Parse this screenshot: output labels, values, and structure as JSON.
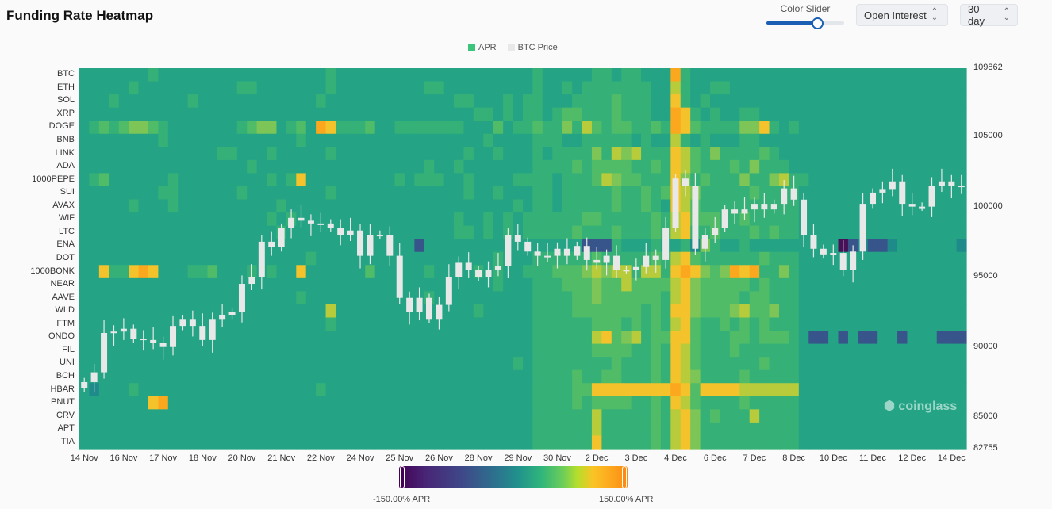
{
  "header": {
    "title": "Funding Rate Heatmap",
    "color_slider_label": "Color Slider",
    "color_slider_value": 0.65,
    "metric_select": "Open Interest",
    "period_select": "30 day"
  },
  "watermark": "coinglass",
  "colorbar": {
    "min_label": "-150.00% APR",
    "max_label": "150.00% APR"
  },
  "chart_data": {
    "type": "heatmap",
    "title": "Funding Rate Heatmap",
    "legend": [
      {
        "name": "APR",
        "color": "#3cc57a"
      },
      {
        "name": "BTC Price",
        "color": "#e8e8e8"
      }
    ],
    "legend_placement": "top-center",
    "rows": [
      "BTC",
      "ETH",
      "SOL",
      "XRP",
      "DOGE",
      "BNB",
      "LINK",
      "ADA",
      "1000PEPE",
      "SUI",
      "AVAX",
      "WIF",
      "LTC",
      "ENA",
      "DOT",
      "1000BONK",
      "NEAR",
      "AAVE",
      "WLD",
      "FTM",
      "ONDO",
      "FIL",
      "UNI",
      "BCH",
      "HBAR",
      "PNUT",
      "CRV",
      "APT",
      "TIA"
    ],
    "x_ticks": [
      "14 Nov",
      "16 Nov",
      "17 Nov",
      "18 Nov",
      "20 Nov",
      "21 Nov",
      "22 Nov",
      "24 Nov",
      "25 Nov",
      "26 Nov",
      "28 Nov",
      "29 Nov",
      "30 Nov",
      "2 Dec",
      "3 Dec",
      "4 Dec",
      "6 Dec",
      "7 Dec",
      "8 Dec",
      "10 Dec",
      "11 Dec",
      "12 Dec",
      "14 Dec"
    ],
    "color_range_apr": [
      -150,
      150
    ],
    "level_apr": [
      -150,
      -80,
      -30,
      0,
      10,
      20,
      35,
      55,
      80,
      110
    ],
    "level_colors": [
      "#461157",
      "#37548b",
      "#1f8a8a",
      "#24a485",
      "#35b178",
      "#50bc68",
      "#7cc556",
      "#b8cc3b",
      "#f4c22a",
      "#fba81f"
    ],
    "cells": [
      "333333343333333333333333343333333333333333333343333344344333943333333333333333333333333333",
      "333334333333333344333333343333333334433333333343343444444433743344333333333333333333333333",
      "333433333334333333333333433333333333334433343443334444544433843433333333333333333333333333",
      "333333333333333333333333333333333333333344343443455444544433984343344333333333333333333333",
      "345456654333333345663453984445334444444333534454464754554454985444466843433333333333333333",
      "333333334333333333333343333333333333333334333344433444443433743433344333333333333333333333",
      "333333333333334433343333343333333333333433433343444464767444875464444543333333333333333333",
      "333333333333333334333333333333333334334333333344445455554454875444546444333333333333333333",
      "345333333433333333343483333333334344433433334444344457655444864544464467443333333333333333",
      "333333334433333343333333343333333333333433433344344444544545876444445444433333333333333333",
      "333334333433333333334333333333333333333333334344344444544543875444444444433333333333333333",
      "333333333333333333343433333333333333334334343444444554444454785554454444433333333333333333",
      "333333333333333333334333333333333333334434343444445444544454784454445454433333333333333333",
      "333333333333333333333333333333333313333333333333333111433343342643343333333330121123333332333",
      "333333333333333333333334333333333333333333433344444454444454785444444544433333333333333333",
      "338448983334453334343383333335333334333343433444555676774774898656989446433333333333333333",
      "333333333333333333333333333333333333333333433344455565575555786555554544433333333333333333",
      "333333333333333333333343333333333334333333333344445565555554786555545544433333333333333333",
      "333333333333333333333333373333333333333343333344445555555454886555675564433333333333333333",
      "333333333333333333333333343333333333333333333344444455545454785445454544433333333333333333",
      "333333333333333333333333333333333333333333333344444478567455885444554555431131311331333111",
      "333333333333333333333333333333333333333333333344444455554454875444544444433333333333333333",
      "333333333333333333333333333333333333333333334344444444544454875444444544433333333333333333",
      "333333333333333333333333333333333333333333333344445445544454876444454444433333333333333333",
      "323334333333333333333333433333333333333333333344445588888888985888877777733333333333333333",
      "333333389333333333333333333333333333333333333344445455554454875444454444433333333333333333",
      "333333333333333333333333333333333333333333333344444474444454786454447444433333333333333333",
      "333333333333333333333333333333333333333333333344444474444454786444444444433333333333333333",
      "333333333333333333333333333333333333333333333344444484444454786444444444433333333333333333"
    ],
    "btc_price": {
      "y_ticks": [
        109862,
        105000,
        100000,
        95000,
        90000,
        85000,
        82755
      ],
      "ylim": [
        82755,
        109862
      ],
      "candle_color": "#e8e8e8",
      "close": [
        87.5,
        88.2,
        91.0,
        91.1,
        91.3,
        90.6,
        90.5,
        90.3,
        90.0,
        91.5,
        92.0,
        91.5,
        90.5,
        92.0,
        92.3,
        92.5,
        94.5,
        95.0,
        97.5,
        97.1,
        98.5,
        99.2,
        99.0,
        98.8,
        98.8,
        98.5,
        98.0,
        98.3,
        96.5,
        98.0,
        98.0,
        96.5,
        93.5,
        92.5,
        93.5,
        92.0,
        93.0,
        95.0,
        96.0,
        95.5,
        95.0,
        95.5,
        95.8,
        98.0,
        97.5,
        96.8,
        96.5,
        96.5,
        97.0,
        96.5,
        97.2,
        96.2,
        96.0,
        96.5,
        95.5,
        95.5,
        95.7,
        96.5,
        96.2,
        98.5,
        102.0,
        101.5,
        97.0,
        98.0,
        98.5,
        99.8,
        99.5,
        99.8,
        100.2,
        99.8,
        100.2,
        101.3,
        100.5,
        98.0,
        97.0,
        96.6,
        96.7,
        95.5,
        96.8,
        100.2,
        101.0,
        101.2,
        101.8,
        100.2,
        100.0,
        100.0,
        101.5,
        101.8,
        101.5,
        101.5
      ]
    }
  }
}
